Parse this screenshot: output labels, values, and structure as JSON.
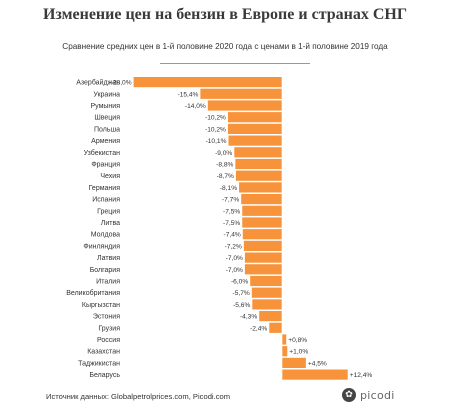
{
  "chart_data": {
    "type": "bar",
    "orientation": "horizontal",
    "title": "Изменение цен на бензин в Европе и странах СНГ",
    "subtitle": "Сравнение средних цен в 1-й половине 2020 года с ценами в 1-й половине 2019 года",
    "bar_color": "#F7943B",
    "categories": [
      "Азербайджан",
      "Украина",
      "Румыния",
      "Швеция",
      "Польша",
      "Армения",
      "Узбекистан",
      "Франция",
      "Чехия",
      "Германия",
      "Испания",
      "Греция",
      "Литва",
      "Молдова",
      "Финляндия",
      "Латвия",
      "Болгария",
      "Италия",
      "Великобритания",
      "Кыргызстан",
      "Эстония",
      "Грузия",
      "Россия",
      "Казахстан",
      "Таджикистан",
      "Беларусь"
    ],
    "values": [
      -28.0,
      -15.4,
      -14.0,
      -10.2,
      -10.2,
      -10.1,
      -9.0,
      -8.8,
      -8.7,
      -8.1,
      -7.7,
      -7.5,
      -7.5,
      -7.4,
      -7.2,
      -7.0,
      -7.0,
      -6.0,
      -5.7,
      -5.6,
      -4.3,
      -2.4,
      0.8,
      1.0,
      4.5,
      12.4
    ],
    "labels": [
      "-28,0%",
      "-15,4%",
      "-14,0%",
      "-10,2%",
      "-10,2%",
      "-10,1%",
      "-9,0%",
      "-8,8%",
      "-8,7%",
      "-8,1%",
      "-7,7%",
      "-7,5%",
      "-7,5%",
      "-7,4%",
      "-7,2%",
      "-7,0%",
      "-7,0%",
      "-6,0%",
      "-5,7%",
      "-5,6%",
      "-4,3%",
      "-2,4%",
      "+0,8%",
      "+1,0%",
      "+4,5%",
      "+12,4%"
    ]
  },
  "footer": {
    "source": "Источник данных: Globalpetrolprices.com, Picodi.com",
    "logo_text": "picodi",
    "logo_icon": "picodi-logo-icon"
  }
}
